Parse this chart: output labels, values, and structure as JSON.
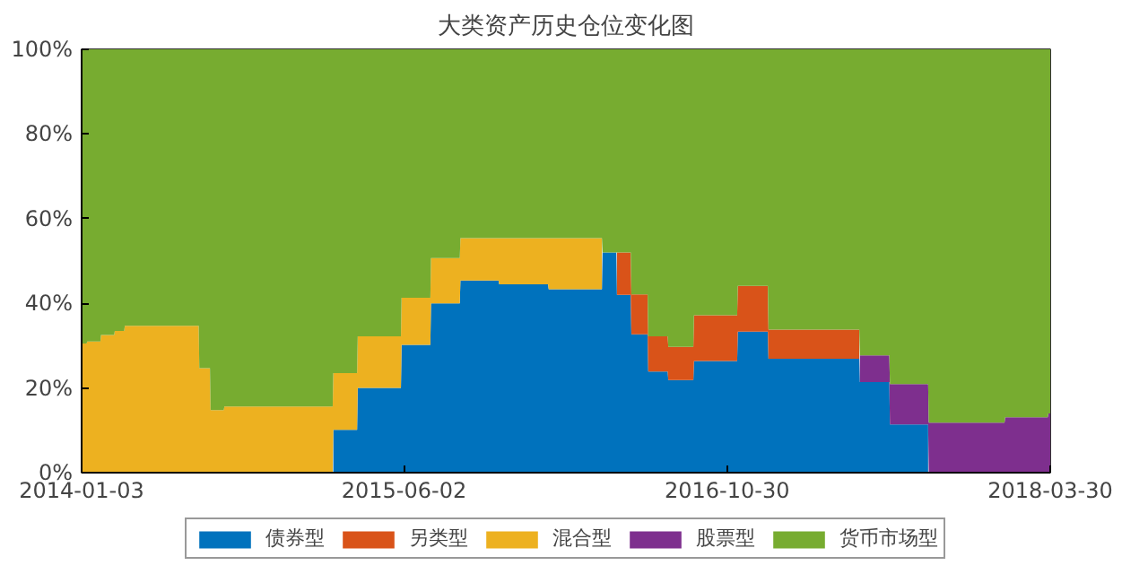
{
  "chart_data": {
    "type": "area",
    "stacked": true,
    "title": "大类资产历史仓位变化图",
    "x": [
      "2014-01-03",
      "2014-01-11",
      "2014-01-12",
      "2014-02-02",
      "2014-02-03",
      "2014-02-24",
      "2014-02-25",
      "2014-03-12",
      "2014-03-13",
      "2014-07-09",
      "2014-07-10",
      "2014-07-27",
      "2014-07-28",
      "2014-08-18",
      "2014-08-19",
      "2015-02-08",
      "2015-02-09",
      "2015-03-19",
      "2015-03-20",
      "2015-05-28",
      "2015-05-29",
      "2015-07-14",
      "2015-07-15",
      "2015-08-30",
      "2015-08-31",
      "2015-10-31",
      "2015-11-01",
      "2016-01-18",
      "2016-01-19",
      "2016-04-13",
      "2016-04-14",
      "2016-05-06",
      "2016-05-07",
      "2016-05-29",
      "2016-05-30",
      "2016-06-25",
      "2016-06-26",
      "2016-07-27",
      "2016-07-28",
      "2016-09-06",
      "2016-09-07",
      "2016-11-15",
      "2016-11-16",
      "2017-01-03",
      "2017-01-04",
      "2017-05-29",
      "2017-05-30",
      "2017-07-16",
      "2017-07-17",
      "2017-09-16",
      "2017-09-17",
      "2018-01-16",
      "2018-01-17",
      "2018-03-26",
      "2018-03-27",
      "2018-03-30"
    ],
    "series": [
      {
        "name": "债券型",
        "color": "#0072bd",
        "values": [
          null,
          null,
          null,
          null,
          null,
          null,
          null,
          null,
          null,
          null,
          null,
          null,
          null,
          null,
          null,
          null,
          10.1,
          10.1,
          20,
          20,
          30.2,
          30.2,
          40,
          40,
          45.4,
          45.4,
          44.5,
          44.5,
          43.3,
          43.3,
          52,
          52,
          42,
          42,
          32.7,
          32.7,
          23.9,
          23.9,
          21.9,
          21.9,
          26.4,
          26.4,
          33.3,
          33.3,
          26.9,
          26.9,
          21.4,
          21.4,
          11.4,
          11.4,
          null,
          null,
          null,
          null,
          null,
          null
        ]
      },
      {
        "name": "另类型",
        "color": "#d95319",
        "values": [
          null,
          null,
          null,
          null,
          null,
          null,
          null,
          null,
          null,
          null,
          null,
          null,
          null,
          null,
          null,
          null,
          null,
          null,
          null,
          null,
          null,
          null,
          null,
          null,
          null,
          null,
          null,
          null,
          null,
          null,
          null,
          null,
          10,
          10,
          9.4,
          9.4,
          8.3,
          8.3,
          7.8,
          7.8,
          10.8,
          10.8,
          10.8,
          10.8,
          6.9,
          6.9,
          null,
          null,
          null,
          null,
          null,
          null,
          null,
          null,
          null,
          null
        ]
      },
      {
        "name": "混合型",
        "color": "#edb120",
        "values": [
          30.5,
          30.5,
          31,
          31,
          32.5,
          32.5,
          33.5,
          33.5,
          34.7,
          34.7,
          24.7,
          24.7,
          14.8,
          14.8,
          15.6,
          15.6,
          13.4,
          13.4,
          12.2,
          12.2,
          11.1,
          11.1,
          10.7,
          10.7,
          10,
          10,
          10.9,
          10.9,
          12.1,
          12.1,
          null,
          null,
          null,
          null,
          null,
          null,
          null,
          null,
          null,
          null,
          null,
          null,
          null,
          null,
          null,
          null,
          null,
          null,
          null,
          null,
          null,
          null,
          null,
          null,
          null,
          null
        ]
      },
      {
        "name": "股票型",
        "color": "#7e2f8e",
        "values": [
          null,
          null,
          null,
          null,
          null,
          null,
          null,
          null,
          null,
          null,
          null,
          null,
          null,
          null,
          null,
          null,
          null,
          null,
          null,
          null,
          null,
          null,
          null,
          null,
          null,
          null,
          null,
          null,
          null,
          null,
          null,
          null,
          null,
          null,
          null,
          null,
          null,
          null,
          null,
          null,
          null,
          null,
          null,
          null,
          null,
          null,
          6.3,
          6.3,
          9.5,
          9.5,
          11.8,
          11.8,
          13.1,
          13.1,
          14,
          14
        ]
      },
      {
        "name": "货币市场型",
        "color": "#77ac30",
        "values": [
          69.5,
          69.5,
          69,
          69,
          67.5,
          67.5,
          66.5,
          66.5,
          65.3,
          65.3,
          75.3,
          75.3,
          85.2,
          85.2,
          84.4,
          84.4,
          76.5,
          76.5,
          67.8,
          67.8,
          58.7,
          58.7,
          49.3,
          49.3,
          44.6,
          44.6,
          44.6,
          44.6,
          44.6,
          44.6,
          48,
          48,
          48,
          48,
          57.9,
          57.9,
          67.8,
          67.8,
          70.3,
          70.3,
          62.8,
          62.8,
          55.9,
          55.9,
          66.2,
          66.2,
          72.3,
          72.3,
          79.1,
          79.1,
          88.2,
          88.2,
          86.9,
          86.9,
          86,
          86
        ]
      }
    ],
    "xlim": [
      "2014-01-03",
      "2018-03-30"
    ],
    "xticks": [
      {
        "value": "2014-01-03",
        "label": "2014-01-03"
      },
      {
        "value": "2015-06-02",
        "label": "2015-06-02"
      },
      {
        "value": "2016-10-30",
        "label": "2016-10-30"
      },
      {
        "value": "2018-03-30",
        "label": "2018-03-30"
      }
    ],
    "ylim": [
      0,
      100
    ],
    "yticks": [
      {
        "value": 0,
        "label": "0%"
      },
      {
        "value": 20,
        "label": "20%"
      },
      {
        "value": 40,
        "label": "40%"
      },
      {
        "value": 60,
        "label": "60%"
      },
      {
        "value": 80,
        "label": "80%"
      },
      {
        "value": 100,
        "label": "100%"
      }
    ],
    "grid": false,
    "legend": "bottom"
  }
}
